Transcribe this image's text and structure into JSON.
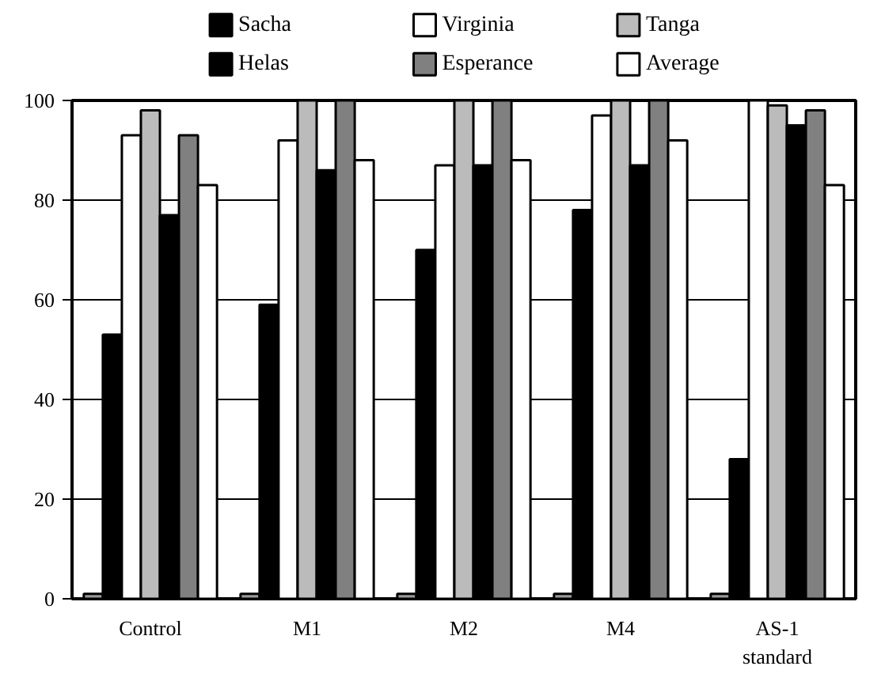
{
  "chart_data": {
    "type": "bar",
    "categories": [
      "Control",
      "M1",
      "M2",
      "M4",
      "AS-1 standard"
    ],
    "series": [
      {
        "color": "#999999",
        "values": [
          1,
          1,
          1,
          1,
          1
        ]
      },
      {
        "name": "Sacha",
        "color": "#000000",
        "values": [
          53,
          59,
          70,
          78,
          28
        ]
      },
      {
        "name": "Virginia",
        "color": "#ffffff",
        "values": [
          93,
          92,
          87,
          97,
          100
        ]
      },
      {
        "name": "Tanga",
        "color": "#bbbbbb",
        "values": [
          98,
          100,
          100,
          100,
          99
        ]
      },
      {
        "name": "Helas",
        "color": "#000000",
        "values": [
          77,
          86,
          87,
          87,
          95
        ]
      },
      {
        "name": "Esperance",
        "color": "#808080",
        "values": [
          93,
          100,
          100,
          100,
          98
        ]
      },
      {
        "name": "Average",
        "color": "#ffffff",
        "values": [
          83,
          88,
          88,
          92,
          83
        ]
      }
    ],
    "ylim": [
      0,
      100
    ],
    "yticks": [
      0,
      20,
      40,
      60,
      80,
      100
    ],
    "grid": "y",
    "legend": "top"
  }
}
